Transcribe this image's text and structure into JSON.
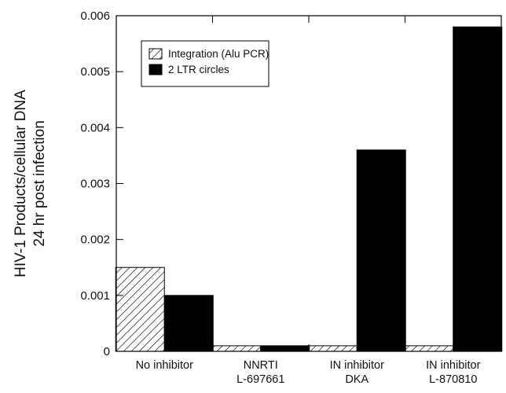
{
  "chart_data": {
    "type": "bar",
    "title": "",
    "xlabel": "",
    "ylabel": [
      "HIV-1 Products/cellular DNA",
      "24 hr post infection"
    ],
    "ylim": [
      0,
      0.006
    ],
    "yticks": [
      "0",
      "0.001",
      "0.002",
      "0.003",
      "0.004",
      "0.005",
      "0.006"
    ],
    "categories": [
      [
        "No inhibitor"
      ],
      [
        "NNRTI",
        "L-697661"
      ],
      [
        "IN inhibitor",
        "DKA"
      ],
      [
        "IN inhibitor",
        "L-870810"
      ]
    ],
    "series": [
      {
        "name": "Integration (Alu PCR)",
        "values": [
          0.0015,
          0.0001,
          0.0001,
          0.0001
        ],
        "fill": "hatched",
        "color": "#000000"
      },
      {
        "name": "2 LTR circles",
        "values": [
          0.001,
          0.0001,
          0.0036,
          0.0058
        ],
        "fill": "solid",
        "color": "#000000"
      }
    ],
    "legend_position": "top-left",
    "grid": false
  }
}
